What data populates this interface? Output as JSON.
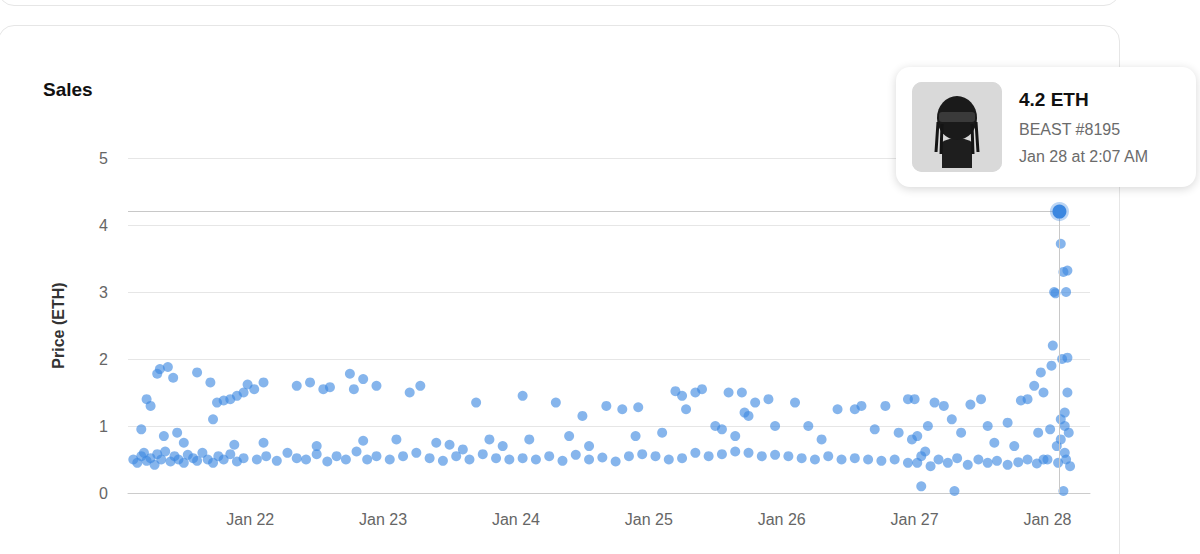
{
  "chart_data": {
    "type": "scatter",
    "title": "Sales",
    "ylabel": "Price (ETH)",
    "color": "#3b87e0",
    "x": [
      21.12,
      21.15,
      21.18,
      21.2,
      21.22,
      21.25,
      21.28,
      21.3,
      21.33,
      21.36,
      21.4,
      21.43,
      21.46,
      21.5,
      21.53,
      21.57,
      21.6,
      21.64,
      21.68,
      21.72,
      21.76,
      21.8,
      21.85,
      21.9,
      21.95,
      21.18,
      21.22,
      21.25,
      21.3,
      21.32,
      21.38,
      21.42,
      21.35,
      21.45,
      21.6,
      21.7,
      21.75,
      21.8,
      21.85,
      21.9,
      21.95,
      21.98,
      21.72,
      21.5,
      21.88,
      22.05,
      22.12,
      22.2,
      22.28,
      22.35,
      22.42,
      22.5,
      22.58,
      22.65,
      22.72,
      22.8,
      22.88,
      22.95,
      22.03,
      22.1,
      22.35,
      22.45,
      22.55,
      22.6,
      22.75,
      22.78,
      22.85,
      22.95,
      22.1,
      22.5,
      22.85,
      23.05,
      23.15,
      23.25,
      23.35,
      23.45,
      23.55,
      23.65,
      23.75,
      23.85,
      23.95,
      23.1,
      23.2,
      23.28,
      23.4,
      23.5,
      23.6,
      23.7,
      23.8,
      23.9,
      24.05,
      24.15,
      24.25,
      24.35,
      24.45,
      24.55,
      24.65,
      24.75,
      24.85,
      24.95,
      24.05,
      24.1,
      24.3,
      24.4,
      24.5,
      24.55,
      24.68,
      24.8,
      24.9,
      24.92,
      25.05,
      25.15,
      25.25,
      25.35,
      25.45,
      25.55,
      25.65,
      25.75,
      25.85,
      25.95,
      25.1,
      25.2,
      25.25,
      25.28,
      25.35,
      25.4,
      25.5,
      25.55,
      25.6,
      25.7,
      25.72,
      25.8,
      25.9,
      25.95,
      25.75,
      25.65,
      26.05,
      26.15,
      26.25,
      26.35,
      26.45,
      26.55,
      26.65,
      26.75,
      26.85,
      26.95,
      26.1,
      26.2,
      26.3,
      26.42,
      26.55,
      26.6,
      26.7,
      26.78,
      26.88,
      26.95,
      26.98,
      27.02,
      27.05,
      27.08,
      27.12,
      27.18,
      27.25,
      27.32,
      27.4,
      27.48,
      27.55,
      27.62,
      27.7,
      27.78,
      27.85,
      27.92,
      27.97,
      27.0,
      27.02,
      27.05,
      27.1,
      27.15,
      27.22,
      27.28,
      27.3,
      27.35,
      27.42,
      27.5,
      27.55,
      27.6,
      27.7,
      27.75,
      27.8,
      27.85,
      27.9,
      27.93,
      27.95,
      27.97,
      28.0,
      28.02,
      28.03,
      28.04,
      28.05,
      28.06,
      28.07,
      28.08,
      28.09,
      28.1,
      28.11,
      28.12,
      28.13,
      28.14,
      28.15,
      28.16,
      28.17,
      28.12,
      28.1,
      28.13,
      28.14,
      28.15,
      28.15,
      28.13,
      28.1
    ],
    "values": [
      0.5,
      0.45,
      0.55,
      0.6,
      0.48,
      0.52,
      0.42,
      0.58,
      0.5,
      0.62,
      0.47,
      0.55,
      0.5,
      0.45,
      0.57,
      0.52,
      0.48,
      0.6,
      0.5,
      0.45,
      0.55,
      0.5,
      0.58,
      0.47,
      0.52,
      0.95,
      1.4,
      1.3,
      1.78,
      1.85,
      1.88,
      1.72,
      0.85,
      0.9,
      1.8,
      1.65,
      1.35,
      1.38,
      1.4,
      1.45,
      1.5,
      1.62,
      1.1,
      0.75,
      0.72,
      0.5,
      0.55,
      0.48,
      0.6,
      0.52,
      0.5,
      0.58,
      0.47,
      0.55,
      0.5,
      0.62,
      0.5,
      0.55,
      1.55,
      1.65,
      1.6,
      1.65,
      1.55,
      1.58,
      1.78,
      1.55,
      1.7,
      1.6,
      0.75,
      0.7,
      0.78,
      0.5,
      0.55,
      0.6,
      0.52,
      0.48,
      0.55,
      0.5,
      0.58,
      0.52,
      0.5,
      0.8,
      1.5,
      1.6,
      0.75,
      0.72,
      0.65,
      1.35,
      0.8,
      0.7,
      0.52,
      0.5,
      0.55,
      0.48,
      0.57,
      0.5,
      0.53,
      0.47,
      0.55,
      0.58,
      1.45,
      0.8,
      1.35,
      0.85,
      1.15,
      0.7,
      1.3,
      1.25,
      0.85,
      1.28,
      0.55,
      0.5,
      0.52,
      0.6,
      0.55,
      0.58,
      0.62,
      0.6,
      0.55,
      0.57,
      0.9,
      1.52,
      1.45,
      1.25,
      1.5,
      1.55,
      1.0,
      0.95,
      1.5,
      1.5,
      1.2,
      1.35,
      1.4,
      1.0,
      1.15,
      0.85,
      0.55,
      0.52,
      0.5,
      0.55,
      0.5,
      0.52,
      0.5,
      0.48,
      0.5,
      0.45,
      1.35,
      1.0,
      0.8,
      1.25,
      1.25,
      1.3,
      0.95,
      1.3,
      0.9,
      1.4,
      0.8,
      0.45,
      0.55,
      0.62,
      0.4,
      0.5,
      0.45,
      0.52,
      0.42,
      0.5,
      0.45,
      0.48,
      0.42,
      0.46,
      0.5,
      0.44,
      0.5,
      1.4,
      0.85,
      0.1,
      1.0,
      1.35,
      1.3,
      1.1,
      0.03,
      0.9,
      1.32,
      1.4,
      1.0,
      0.75,
      1.05,
      0.7,
      1.38,
      1.4,
      1.6,
      0.9,
      1.8,
      1.5,
      0.5,
      0.95,
      1.9,
      2.2,
      3.0,
      2.98,
      0.7,
      0.45,
      4.2,
      3.72,
      2.0,
      3.3,
      1.2,
      0.5,
      1.5,
      0.9,
      0.4,
      0.03,
      0.8,
      0.6,
      3.0,
      3.32,
      2.02,
      1.0,
      1.1
    ],
    "xlim": [
      21.08,
      28.32
    ],
    "xticks": [
      {
        "value": 22,
        "label": "Jan 22"
      },
      {
        "value": 23,
        "label": "Jan 23"
      },
      {
        "value": 24,
        "label": "Jan 24"
      },
      {
        "value": 25,
        "label": "Jan 25"
      },
      {
        "value": 26,
        "label": "Jan 26"
      },
      {
        "value": 27,
        "label": "Jan 27"
      },
      {
        "value": 28,
        "label": "Jan 28"
      }
    ],
    "ylim": [
      0,
      5
    ],
    "yticks": [
      0,
      1,
      2,
      3,
      4,
      5
    ],
    "grid": true,
    "annotation": {
      "title": "4.2 ETH",
      "subtitle": "BEAST #8195",
      "time": "Jan 28 at 2:07 AM",
      "x": 28.09,
      "y": 4.2
    }
  }
}
